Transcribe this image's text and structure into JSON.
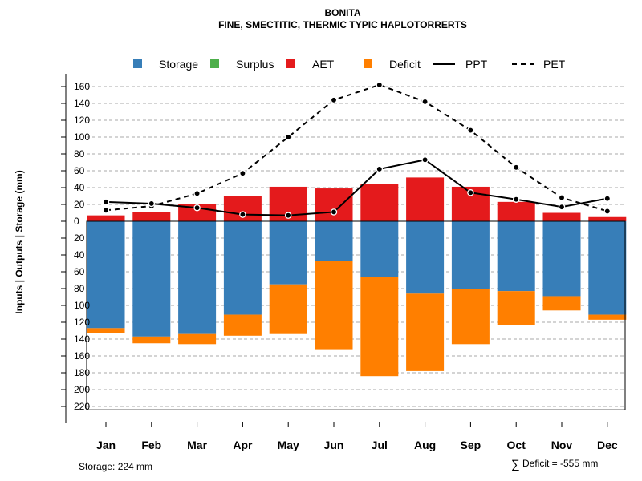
{
  "chart_data": {
    "type": "bar",
    "title": "BONITA",
    "subtitle": "FINE, SMECTITIC, THERMIC TYPIC HAPLOTORRERTS",
    "ylabel": "Inputs | Outputs | Storage    (mm)",
    "ylim": [
      -225,
      165
    ],
    "y_ticks": [
      160,
      140,
      120,
      100,
      80,
      60,
      40,
      20,
      0,
      -20,
      -40,
      -60,
      -80,
      -100,
      -120,
      -140,
      -160,
      -180,
      -200,
      -220
    ],
    "y_tick_labels": [
      "160",
      "140",
      "120",
      "100",
      "80",
      "60",
      "40",
      "20",
      "0",
      "20",
      "40",
      "60",
      "80",
      "100",
      "120",
      "140",
      "160",
      "180",
      "200",
      "220"
    ],
    "categories": [
      "Jan",
      "Feb",
      "Mar",
      "Apr",
      "May",
      "Jun",
      "Jul",
      "Aug",
      "Sep",
      "Oct",
      "Nov",
      "Dec"
    ],
    "legend": [
      {
        "key": "storage",
        "label": "Storage",
        "kind": "box",
        "color": "#377EB8"
      },
      {
        "key": "surplus",
        "label": "Surplus",
        "kind": "box",
        "color": "#4DAF4A"
      },
      {
        "key": "aet",
        "label": "AET",
        "kind": "box",
        "color": "#E41A1C"
      },
      {
        "key": "deficit",
        "label": "Deficit",
        "kind": "box",
        "color": "#FF7F00"
      },
      {
        "key": "ppt",
        "label": "PPT",
        "kind": "solid-line",
        "color": "#000000"
      },
      {
        "key": "pet",
        "label": "PET",
        "kind": "dashed-line",
        "color": "#000000"
      }
    ],
    "series": [
      {
        "name": "AET",
        "color": "#E41A1C",
        "values": [
          7,
          11,
          20,
          30,
          41,
          39,
          44,
          52,
          41,
          23,
          10,
          5
        ]
      },
      {
        "name": "Storage",
        "color": "#377EB8",
        "values": [
          127,
          137,
          134,
          111,
          75,
          47,
          66,
          86,
          80,
          83,
          89,
          111
        ]
      },
      {
        "name": "Deficit",
        "color": "#FF7F00",
        "values": [
          6,
          8,
          12,
          25,
          59,
          105,
          118,
          92,
          66,
          40,
          17,
          6
        ]
      },
      {
        "name": "Surplus",
        "color": "#4DAF4A",
        "values": [
          0,
          0,
          0,
          0,
          0,
          0,
          0,
          0,
          0,
          0,
          0,
          0
        ]
      },
      {
        "name": "PPT",
        "color": "#000000",
        "style": "solid",
        "values": [
          23,
          21,
          16,
          8,
          7,
          11,
          62,
          73,
          34,
          26,
          17,
          27
        ]
      },
      {
        "name": "PET",
        "color": "#000000",
        "style": "dashed",
        "values": [
          13,
          18,
          33,
          57,
          100,
          144,
          162,
          142,
          108,
          64,
          28,
          12
        ]
      }
    ],
    "storage_note": "Storage: 224 mm",
    "deficit_note": "Deficit = -555 mm",
    "sum_symbol": "∑",
    "grid": true,
    "legend_position": "top"
  }
}
